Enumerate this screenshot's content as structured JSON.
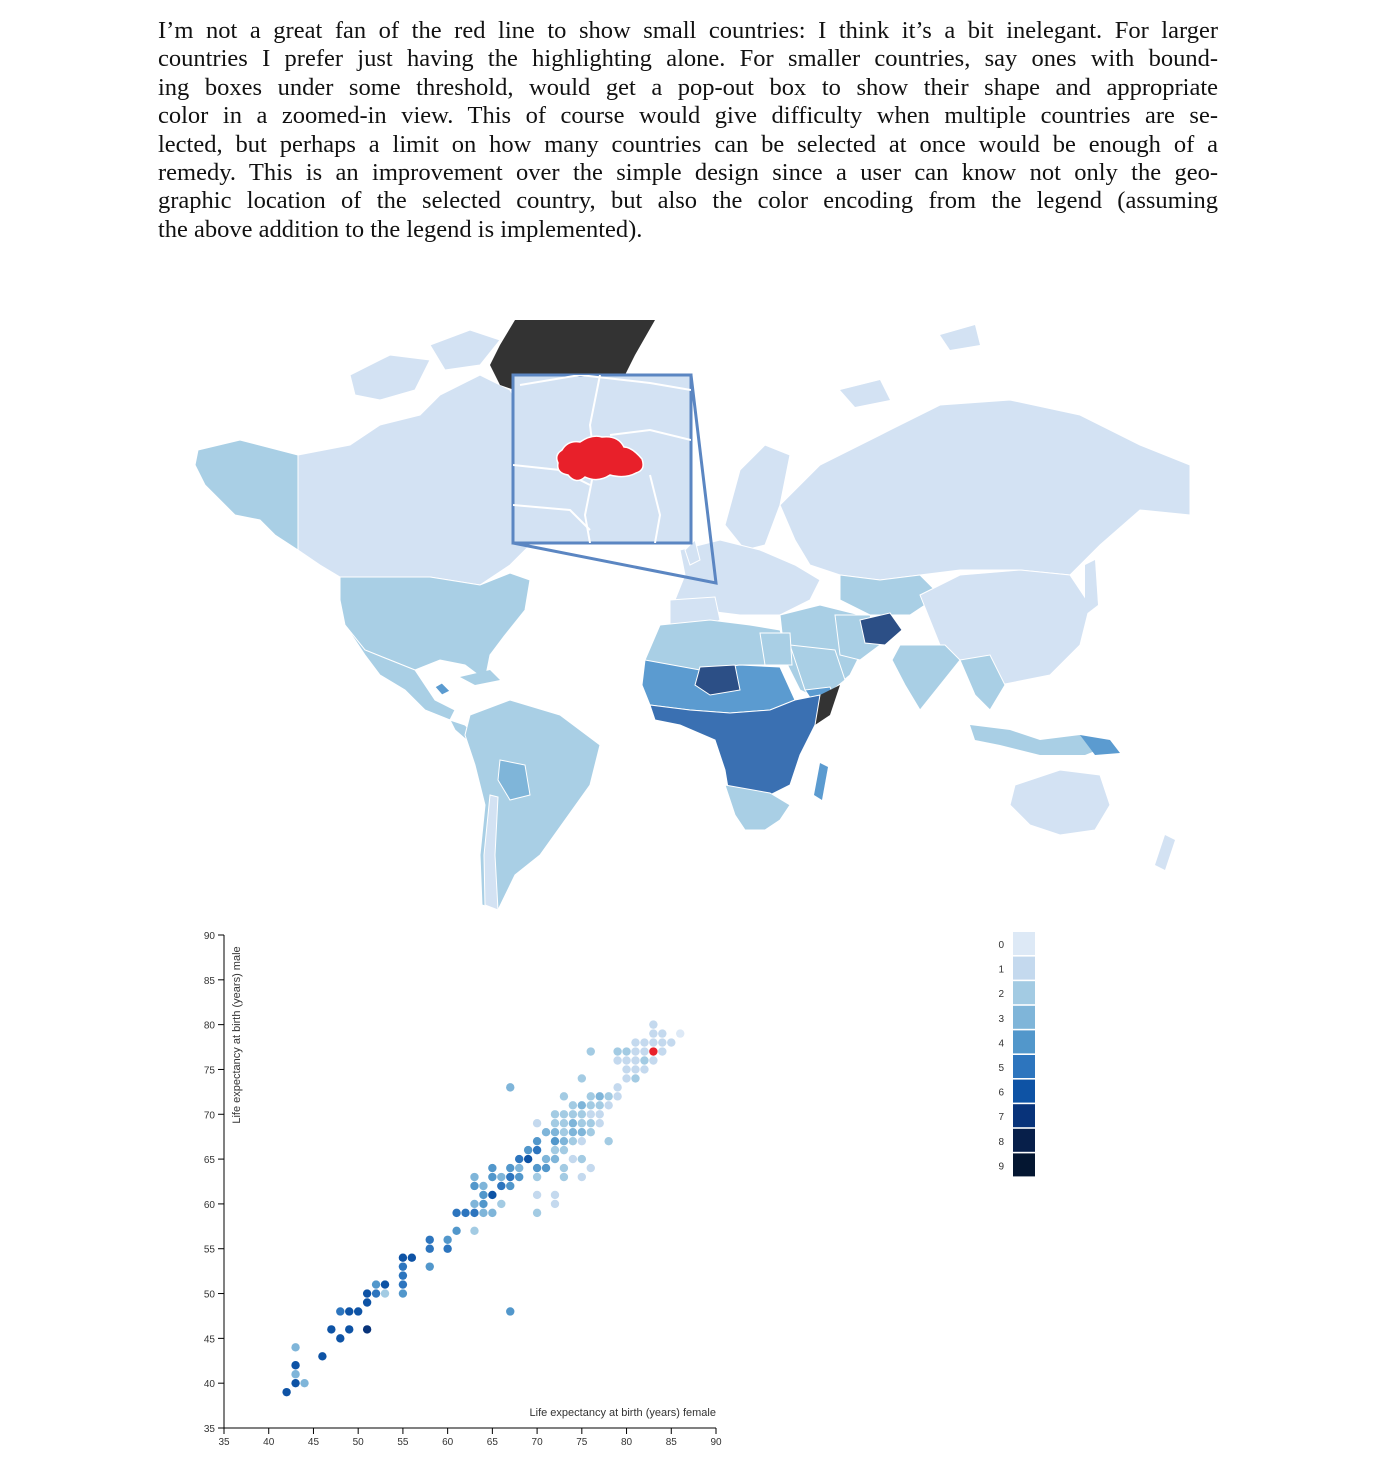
{
  "paragraph": {
    "lines": [
      "I’m not a great fan of the red line to show small countries: I think it’s a bit inelegant. For larger",
      "countries I prefer just having the highlighting alone. For smaller countries, say ones with bound-",
      "ing boxes under some threshold, would get a pop-out box to show their shape and appropriate",
      "color in a zoomed-in view. This of course would give difficulty when multiple countries are se-",
      "lected, but perhaps a limit on how many countries can be selected at once would be enough of a",
      "remedy. This is an improvement over the simple design since a user can know not only the geo-",
      "graphic location of the selected country, but also the color encoding from the legend (assuming",
      "the above addition to the legend is implemented)."
    ]
  },
  "map": {
    "colors": {
      "land_light": "#d3e2f3",
      "land_mid": "#a9cfe5",
      "land_blue": "#5b9bd0",
      "land_deep": "#3a70b2",
      "land_dark": "#2c4f86",
      "greenland": "#333333",
      "highlight": "#e8202a",
      "callout_border": "#5b86c2"
    }
  },
  "chart_data": {
    "type": "scatter",
    "xlabel": "Life expectancy at birth (years) female",
    "ylabel": "Life expectancy at birth (years) male",
    "xlim": [
      35,
      90
    ],
    "ylim": [
      35,
      90
    ],
    "xticks": [
      "35",
      "40",
      "45",
      "50",
      "55",
      "60",
      "65",
      "70",
      "75",
      "80",
      "85",
      "90"
    ],
    "yticks": [
      "35",
      "40",
      "45",
      "50",
      "55",
      "60",
      "65",
      "70",
      "75",
      "80",
      "85",
      "90"
    ],
    "selected_color": "#e8202a",
    "palette": [
      "#dde9f6",
      "#c4d9ee",
      "#a3cbe3",
      "#7fb5d9",
      "#5297cb",
      "#2d75be",
      "#0e53a5",
      "#08337a",
      "#071f4a",
      "#041631"
    ],
    "legend": {
      "labels": [
        "0",
        "1",
        "2",
        "3",
        "4",
        "5",
        "6",
        "7",
        "8",
        "9"
      ]
    },
    "points": [
      {
        "x": 42,
        "y": 39,
        "c": 6
      },
      {
        "x": 43,
        "y": 40,
        "c": 6
      },
      {
        "x": 44,
        "y": 40,
        "c": 3
      },
      {
        "x": 43,
        "y": 41,
        "c": 3
      },
      {
        "x": 43,
        "y": 42,
        "c": 6
      },
      {
        "x": 43,
        "y": 44,
        "c": 3
      },
      {
        "x": 46,
        "y": 43,
        "c": 6
      },
      {
        "x": 47,
        "y": 46,
        "c": 6
      },
      {
        "x": 48,
        "y": 45,
        "c": 6
      },
      {
        "x": 49,
        "y": 46,
        "c": 6
      },
      {
        "x": 51,
        "y": 46,
        "c": 7
      },
      {
        "x": 48,
        "y": 48,
        "c": 5
      },
      {
        "x": 49,
        "y": 48,
        "c": 6
      },
      {
        "x": 50,
        "y": 48,
        "c": 6
      },
      {
        "x": 51,
        "y": 49,
        "c": 6
      },
      {
        "x": 51,
        "y": 50,
        "c": 6
      },
      {
        "x": 52,
        "y": 50,
        "c": 5
      },
      {
        "x": 53,
        "y": 50,
        "c": 2
      },
      {
        "x": 52,
        "y": 51,
        "c": 4
      },
      {
        "x": 53,
        "y": 51,
        "c": 6
      },
      {
        "x": 55,
        "y": 50,
        "c": 4
      },
      {
        "x": 55,
        "y": 51,
        "c": 5
      },
      {
        "x": 55,
        "y": 52,
        "c": 5
      },
      {
        "x": 55,
        "y": 53,
        "c": 5
      },
      {
        "x": 55,
        "y": 54,
        "c": 6
      },
      {
        "x": 56,
        "y": 54,
        "c": 6
      },
      {
        "x": 58,
        "y": 53,
        "c": 4
      },
      {
        "x": 58,
        "y": 55,
        "c": 5
      },
      {
        "x": 58,
        "y": 56,
        "c": 5
      },
      {
        "x": 60,
        "y": 55,
        "c": 5
      },
      {
        "x": 60,
        "y": 56,
        "c": 4
      },
      {
        "x": 61,
        "y": 57,
        "c": 4
      },
      {
        "x": 61,
        "y": 59,
        "c": 5
      },
      {
        "x": 62,
        "y": 59,
        "c": 5
      },
      {
        "x": 63,
        "y": 59,
        "c": 5
      },
      {
        "x": 64,
        "y": 59,
        "c": 3
      },
      {
        "x": 65,
        "y": 59,
        "c": 3
      },
      {
        "x": 63,
        "y": 57,
        "c": 2
      },
      {
        "x": 63,
        "y": 60,
        "c": 3
      },
      {
        "x": 64,
        "y": 60,
        "c": 4
      },
      {
        "x": 65,
        "y": 61,
        "c": 6
      },
      {
        "x": 64,
        "y": 61,
        "c": 4
      },
      {
        "x": 63,
        "y": 62,
        "c": 4
      },
      {
        "x": 64,
        "y": 62,
        "c": 3
      },
      {
        "x": 66,
        "y": 62,
        "c": 5
      },
      {
        "x": 66,
        "y": 60,
        "c": 2
      },
      {
        "x": 67,
        "y": 62,
        "c": 4
      },
      {
        "x": 65,
        "y": 63,
        "c": 4
      },
      {
        "x": 66,
        "y": 63,
        "c": 3
      },
      {
        "x": 63,
        "y": 63,
        "c": 3
      },
      {
        "x": 67,
        "y": 63,
        "c": 5
      },
      {
        "x": 68,
        "y": 63,
        "c": 4
      },
      {
        "x": 65,
        "y": 64,
        "c": 4
      },
      {
        "x": 67,
        "y": 64,
        "c": 4
      },
      {
        "x": 68,
        "y": 64,
        "c": 3
      },
      {
        "x": 68,
        "y": 65,
        "c": 5
      },
      {
        "x": 69,
        "y": 65,
        "c": 6
      },
      {
        "x": 70,
        "y": 64,
        "c": 4
      },
      {
        "x": 71,
        "y": 64,
        "c": 4
      },
      {
        "x": 69,
        "y": 66,
        "c": 4
      },
      {
        "x": 70,
        "y": 66,
        "c": 5
      },
      {
        "x": 70,
        "y": 67,
        "c": 4
      },
      {
        "x": 70,
        "y": 63,
        "c": 2
      },
      {
        "x": 70,
        "y": 61,
        "c": 1
      },
      {
        "x": 70,
        "y": 59,
        "c": 2
      },
      {
        "x": 71,
        "y": 65,
        "c": 3
      },
      {
        "x": 72,
        "y": 65,
        "c": 3
      },
      {
        "x": 72,
        "y": 66,
        "c": 2
      },
      {
        "x": 73,
        "y": 64,
        "c": 2
      },
      {
        "x": 73,
        "y": 63,
        "c": 2
      },
      {
        "x": 74,
        "y": 65,
        "c": 1
      },
      {
        "x": 75,
        "y": 65,
        "c": 2
      },
      {
        "x": 76,
        "y": 64,
        "c": 1
      },
      {
        "x": 72,
        "y": 61,
        "c": 1
      },
      {
        "x": 72,
        "y": 60,
        "c": 1
      },
      {
        "x": 75,
        "y": 63,
        "c": 1
      },
      {
        "x": 71,
        "y": 68,
        "c": 3
      },
      {
        "x": 72,
        "y": 68,
        "c": 3
      },
      {
        "x": 73,
        "y": 68,
        "c": 2
      },
      {
        "x": 74,
        "y": 68,
        "c": 3
      },
      {
        "x": 75,
        "y": 68,
        "c": 3
      },
      {
        "x": 76,
        "y": 68,
        "c": 2
      },
      {
        "x": 72,
        "y": 67,
        "c": 4
      },
      {
        "x": 73,
        "y": 67,
        "c": 3
      },
      {
        "x": 73,
        "y": 66,
        "c": 2
      },
      {
        "x": 74,
        "y": 67,
        "c": 2
      },
      {
        "x": 75,
        "y": 67,
        "c": 1
      },
      {
        "x": 72,
        "y": 69,
        "c": 2
      },
      {
        "x": 73,
        "y": 69,
        "c": 2
      },
      {
        "x": 74,
        "y": 69,
        "c": 3
      },
      {
        "x": 75,
        "y": 69,
        "c": 2
      },
      {
        "x": 76,
        "y": 69,
        "c": 2
      },
      {
        "x": 77,
        "y": 69,
        "c": 1
      },
      {
        "x": 72,
        "y": 70,
        "c": 2
      },
      {
        "x": 73,
        "y": 70,
        "c": 2
      },
      {
        "x": 74,
        "y": 70,
        "c": 2
      },
      {
        "x": 75,
        "y": 70,
        "c": 2
      },
      {
        "x": 76,
        "y": 70,
        "c": 1
      },
      {
        "x": 74,
        "y": 71,
        "c": 2
      },
      {
        "x": 75,
        "y": 71,
        "c": 3
      },
      {
        "x": 76,
        "y": 71,
        "c": 2
      },
      {
        "x": 77,
        "y": 71,
        "c": 2
      },
      {
        "x": 78,
        "y": 71,
        "c": 1
      },
      {
        "x": 76,
        "y": 72,
        "c": 2
      },
      {
        "x": 77,
        "y": 72,
        "c": 3
      },
      {
        "x": 78,
        "y": 72,
        "c": 2
      },
      {
        "x": 79,
        "y": 72,
        "c": 1
      },
      {
        "x": 73,
        "y": 72,
        "c": 2
      },
      {
        "x": 77,
        "y": 70,
        "c": 1
      },
      {
        "x": 78,
        "y": 67,
        "c": 2
      },
      {
        "x": 75,
        "y": 74,
        "c": 2
      },
      {
        "x": 67,
        "y": 73,
        "c": 3
      },
      {
        "x": 79,
        "y": 73,
        "c": 1
      },
      {
        "x": 80,
        "y": 74,
        "c": 1
      },
      {
        "x": 81,
        "y": 74,
        "c": 2
      },
      {
        "x": 80,
        "y": 75,
        "c": 1
      },
      {
        "x": 81,
        "y": 75,
        "c": 1
      },
      {
        "x": 82,
        "y": 75,
        "c": 1
      },
      {
        "x": 79,
        "y": 76,
        "c": 1
      },
      {
        "x": 80,
        "y": 76,
        "c": 1
      },
      {
        "x": 81,
        "y": 76,
        "c": 1
      },
      {
        "x": 82,
        "y": 76,
        "c": 2
      },
      {
        "x": 83,
        "y": 76,
        "c": 1
      },
      {
        "x": 76,
        "y": 77,
        "c": 2
      },
      {
        "x": 79,
        "y": 77,
        "c": 2
      },
      {
        "x": 80,
        "y": 77,
        "c": 2
      },
      {
        "x": 81,
        "y": 77,
        "c": 1
      },
      {
        "x": 82,
        "y": 77,
        "c": 1
      },
      {
        "x": 84,
        "y": 77,
        "c": 1
      },
      {
        "x": 82,
        "y": 78,
        "c": 1
      },
      {
        "x": 83,
        "y": 78,
        "c": 1
      },
      {
        "x": 84,
        "y": 78,
        "c": 1
      },
      {
        "x": 85,
        "y": 78,
        "c": 1
      },
      {
        "x": 83,
        "y": 79,
        "c": 1
      },
      {
        "x": 84,
        "y": 79,
        "c": 1
      },
      {
        "x": 86,
        "y": 79,
        "c": 0
      },
      {
        "x": 83,
        "y": 80,
        "c": 1
      },
      {
        "x": 81,
        "y": 78,
        "c": 1
      },
      {
        "x": 70,
        "y": 69,
        "c": 1
      },
      {
        "x": 67,
        "y": 48,
        "c": 4
      },
      {
        "x": 83,
        "y": 77,
        "c": "sel"
      }
    ]
  }
}
